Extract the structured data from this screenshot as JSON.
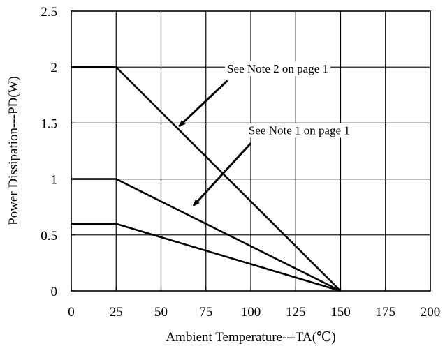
{
  "chart_data": {
    "type": "line",
    "title": "",
    "xlabel": "Ambient Temperature---TA(℃)",
    "ylabel": "Power Dissipation---PD(W)",
    "xlim": [
      0,
      200
    ],
    "ylim": [
      0,
      2.5
    ],
    "grid": true,
    "x_ticks": [
      0,
      25,
      50,
      75,
      100,
      125,
      150,
      175,
      200
    ],
    "y_ticks": [
      0,
      0.5,
      1,
      1.5,
      2,
      2.5
    ],
    "x_tick_labels": [
      "0",
      "25",
      "50",
      "75",
      "100",
      "125",
      "150",
      "175",
      "200"
    ],
    "y_tick_labels": [
      "0",
      "0.5",
      "1",
      "1.5",
      "2",
      "2.5"
    ],
    "series": [
      {
        "x": [
          0,
          25,
          150
        ],
        "y": [
          2.0,
          2.0,
          0
        ]
      },
      {
        "x": [
          0,
          25,
          150
        ],
        "y": [
          1.0,
          1.0,
          0
        ]
      },
      {
        "x": [
          0,
          25,
          150
        ],
        "y": [
          0.6,
          0.6,
          0
        ]
      }
    ],
    "annotations": [
      {
        "text": "See Note 2 on page 1",
        "text_x": 115,
        "text_y": 1.95,
        "arrow_from": [
          87,
          1.88
        ],
        "arrow_to": [
          60,
          1.47
        ]
      },
      {
        "text": "See Note 1 on page 1",
        "text_x": 127,
        "text_y": 1.4,
        "arrow_from": [
          100,
          1.32
        ],
        "arrow_to": [
          68,
          0.76
        ]
      }
    ]
  }
}
